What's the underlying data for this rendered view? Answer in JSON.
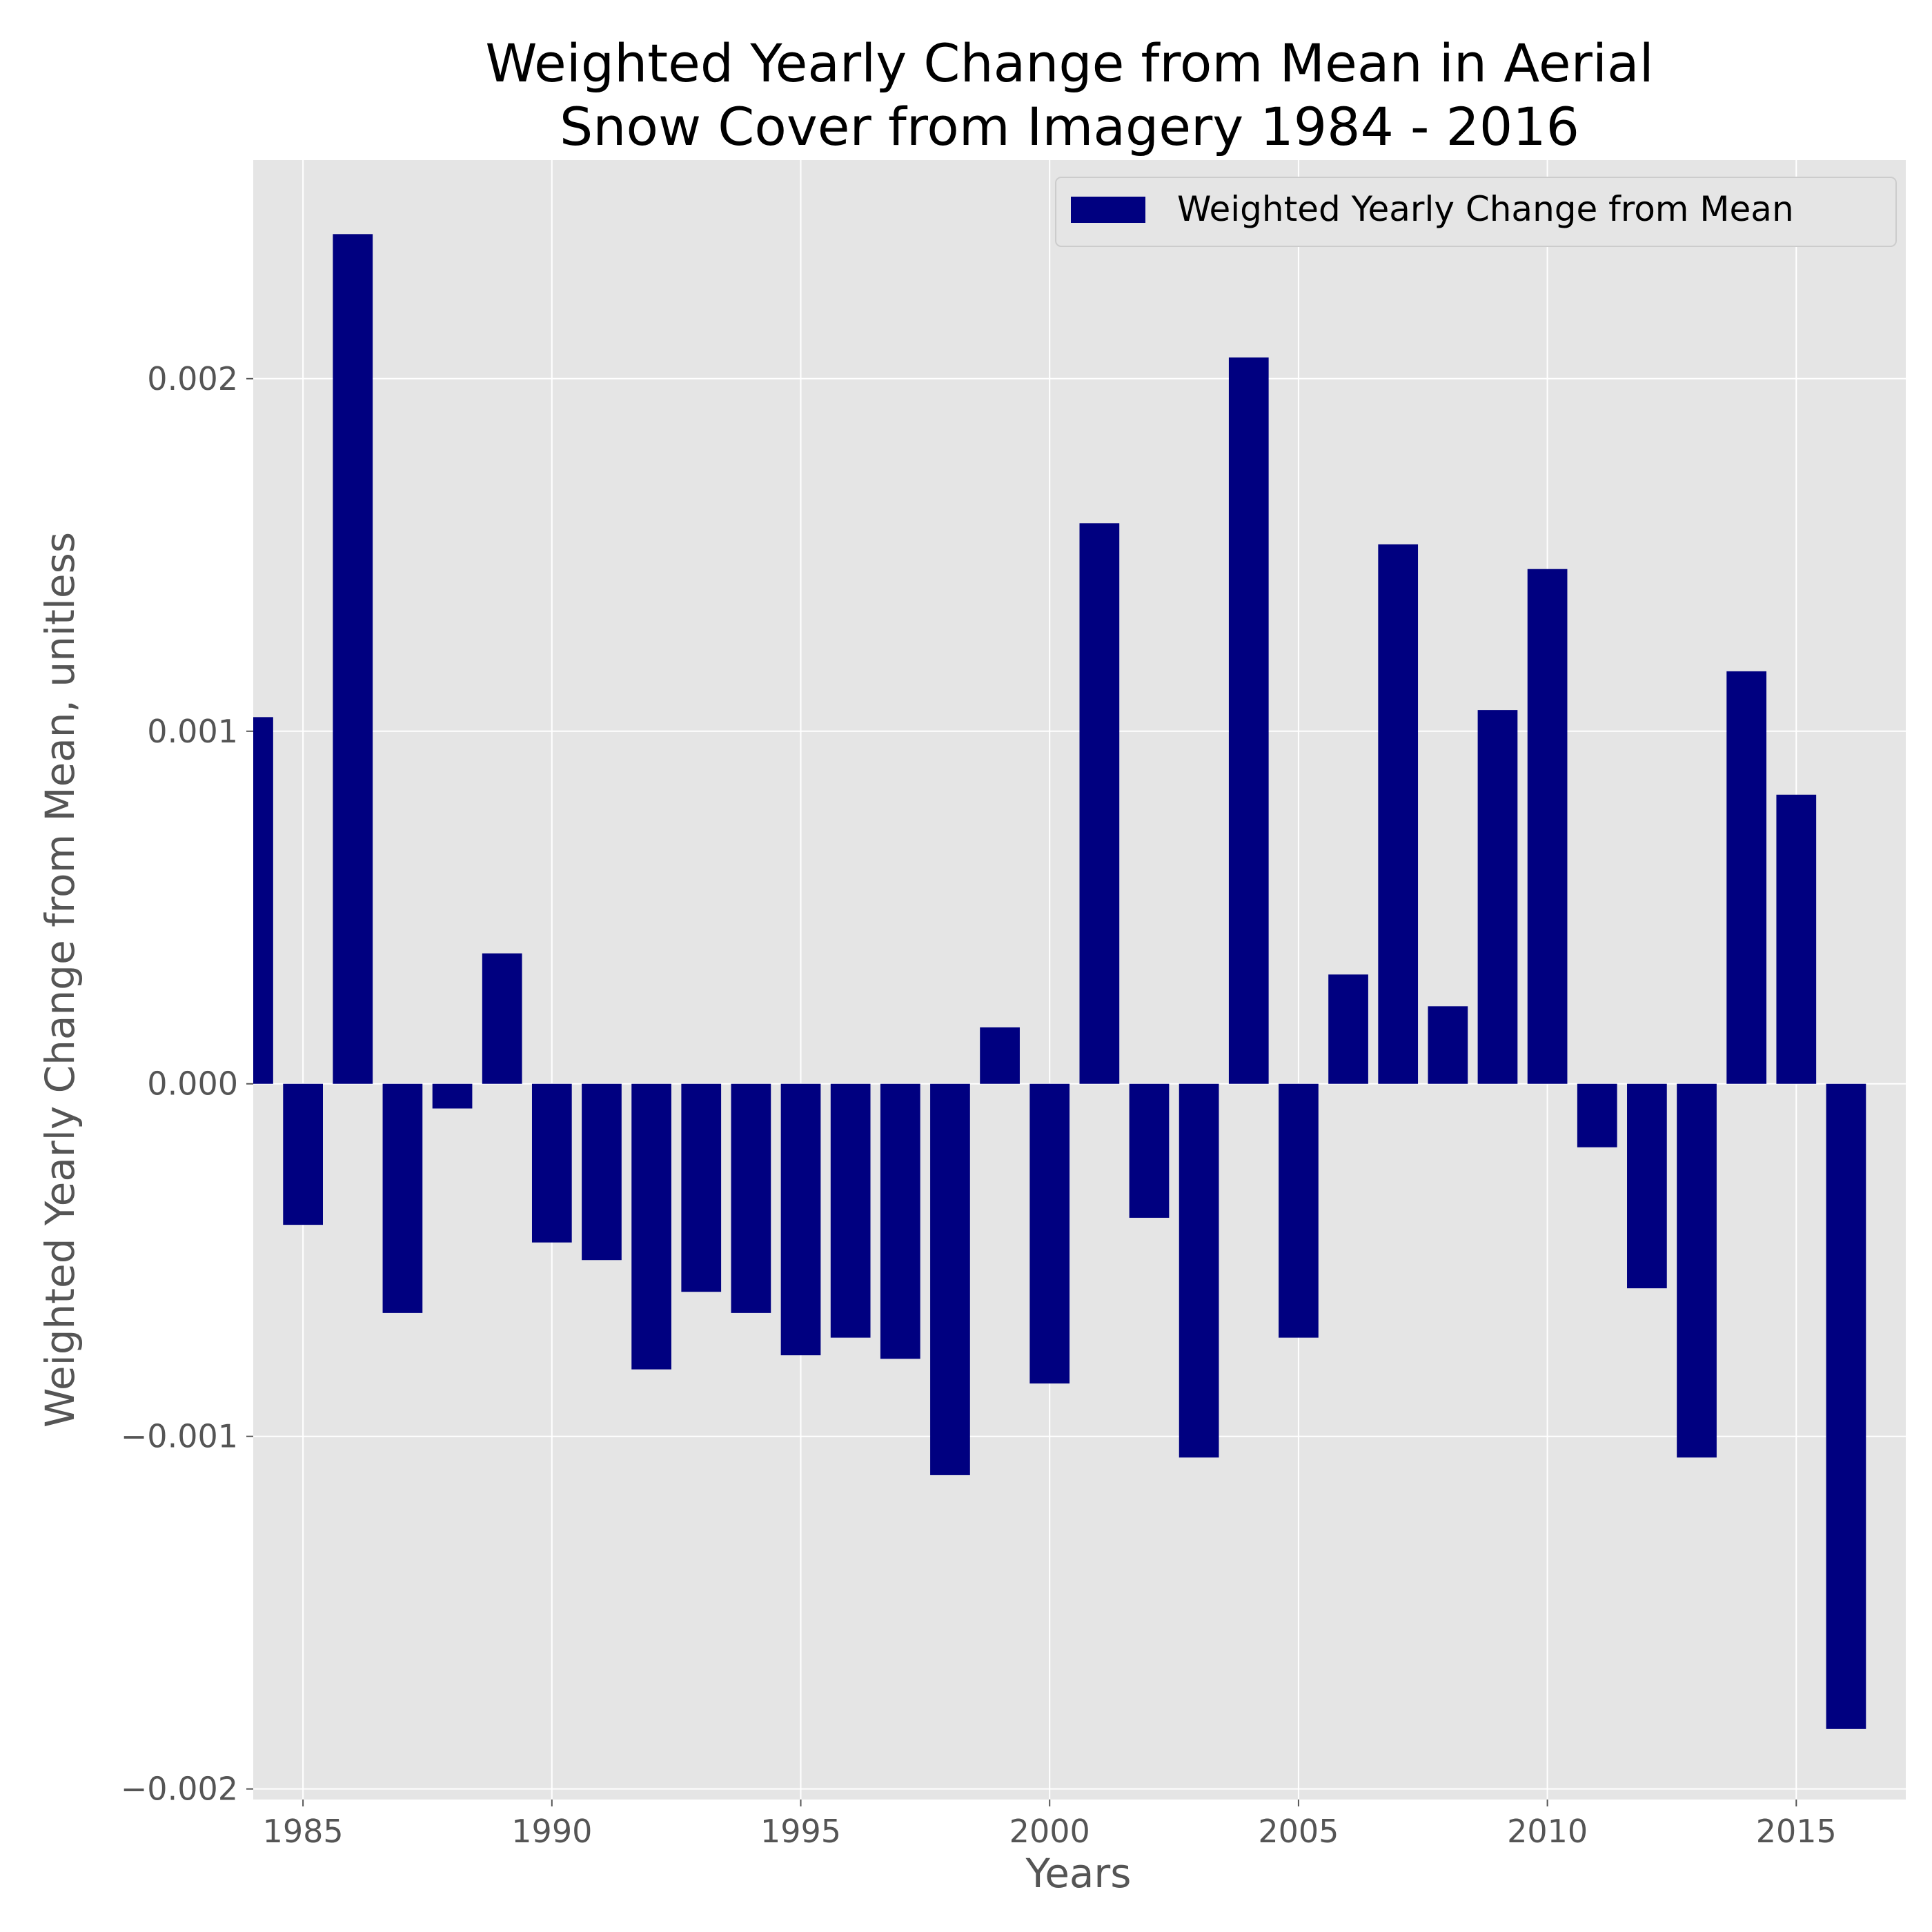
{
  "chart_data": {
    "type": "bar",
    "title_line1": "Weighted Yearly Change from Mean in Aerial",
    "title_line2": "Snow Cover from Imagery 1984 - 2016",
    "xlabel": "Years",
    "ylabel": "Weighted Yearly Change from Mean, unitless",
    "legend": "Weighted Yearly Change from Mean",
    "legend_position": "top-right",
    "bar_color": "#000080",
    "background_color": "#e5e5e5",
    "grid": true,
    "xlim": [
      1984,
      2017.2
    ],
    "ylim": [
      -0.00203,
      0.00262
    ],
    "x_ticks": [
      1985,
      1990,
      1995,
      2000,
      2005,
      2010,
      2015
    ],
    "x_tick_labels": [
      "1985",
      "1990",
      "1995",
      "2000",
      "2005",
      "2010",
      "2015"
    ],
    "y_ticks": [
      -0.002,
      -0.001,
      0.0,
      0.001,
      0.002
    ],
    "y_tick_labels": [
      "−0.002",
      "−0.001",
      "0.000",
      "0.001",
      "0.002"
    ],
    "x": [
      1984,
      1985,
      1986,
      1987,
      1988,
      1989,
      1990,
      1991,
      1992,
      1993,
      1994,
      1995,
      1996,
      1997,
      1998,
      1999,
      2000,
      2001,
      2002,
      2003,
      2004,
      2005,
      2006,
      2007,
      2008,
      2009,
      2010,
      2011,
      2012,
      2013,
      2014,
      2015,
      2016
    ],
    "values": [
      0.00104,
      -0.0004,
      0.00241,
      -0.00065,
      -7e-05,
      0.00037,
      -0.00045,
      -0.0005,
      -0.00081,
      -0.00059,
      -0.00065,
      -0.00077,
      -0.00072,
      -0.00078,
      -0.00111,
      0.00016,
      -0.00085,
      0.00159,
      -0.00038,
      -0.00106,
      0.00206,
      -0.00072,
      0.00031,
      0.00153,
      0.00022,
      0.00106,
      0.00146,
      -0.00018,
      -0.00058,
      -0.00106,
      0.00117,
      0.00082,
      -0.00183
    ]
  }
}
